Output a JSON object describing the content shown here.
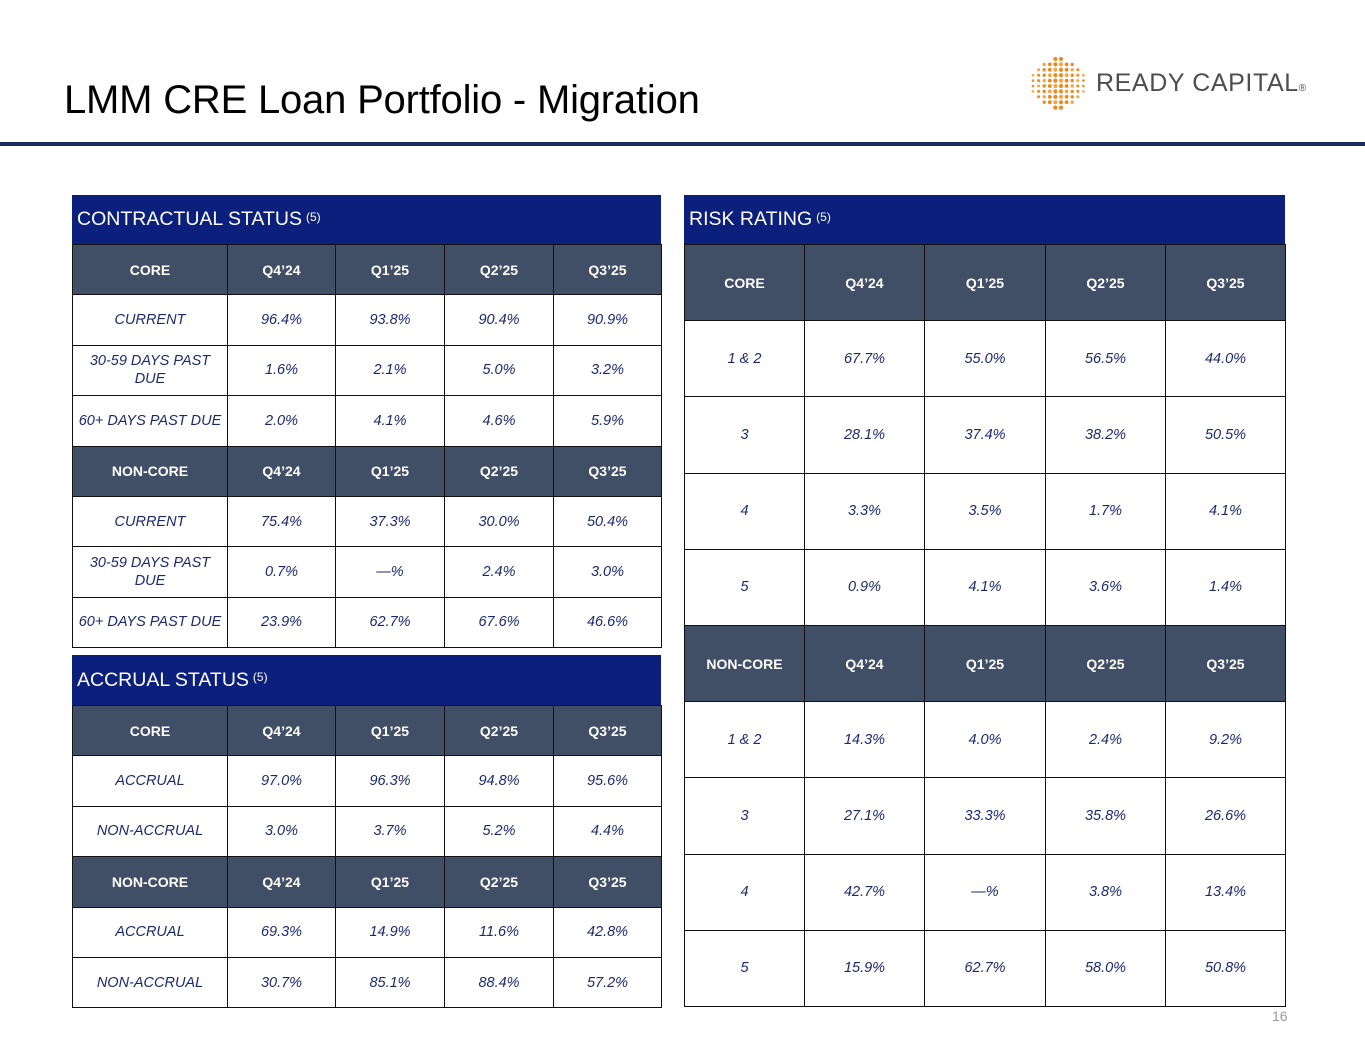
{
  "page": {
    "title": "LMM CRE Loan Portfolio - Migration",
    "page_number": "16",
    "logo": {
      "text": "READY CAPITAL",
      "reg": "®"
    }
  },
  "contractual": {
    "title": "CONTRACTUAL STATUS",
    "footnote": "(5)",
    "core_header": [
      "CORE",
      "Q4’24",
      "Q1’25",
      "Q2’25",
      "Q3’25"
    ],
    "core_rows": [
      [
        "CURRENT",
        "96.4%",
        "93.8%",
        "90.4%",
        "90.9%"
      ],
      [
        "30-59 DAYS PAST DUE",
        "1.6%",
        "2.1%",
        "5.0%",
        "3.2%"
      ],
      [
        "60+ DAYS PAST DUE",
        "2.0%",
        "4.1%",
        "4.6%",
        "5.9%"
      ]
    ],
    "noncore_header": [
      "NON-CORE",
      "Q4’24",
      "Q1’25",
      "Q2’25",
      "Q3’25"
    ],
    "noncore_rows": [
      [
        "CURRENT",
        "75.4%",
        "37.3%",
        "30.0%",
        "50.4%"
      ],
      [
        "30-59 DAYS PAST DUE",
        "0.7%",
        "—%",
        "2.4%",
        "3.0%"
      ],
      [
        "60+ DAYS PAST DUE",
        "23.9%",
        "62.7%",
        "67.6%",
        "46.6%"
      ]
    ]
  },
  "accrual": {
    "title": "ACCRUAL STATUS",
    "footnote": "(5)",
    "core_header": [
      "CORE",
      "Q4’24",
      "Q1’25",
      "Q2’25",
      "Q3’25"
    ],
    "core_rows": [
      [
        "ACCRUAL",
        "97.0%",
        "96.3%",
        "94.8%",
        "95.6%"
      ],
      [
        "NON-ACCRUAL",
        "3.0%",
        "3.7%",
        "5.2%",
        "4.4%"
      ]
    ],
    "noncore_header": [
      "NON-CORE",
      "Q4’24",
      "Q1’25",
      "Q2’25",
      "Q3’25"
    ],
    "noncore_rows": [
      [
        "ACCRUAL",
        "69.3%",
        "14.9%",
        "11.6%",
        "42.8%"
      ],
      [
        "NON-ACCRUAL",
        "30.7%",
        "85.1%",
        "88.4%",
        "57.2%"
      ]
    ]
  },
  "risk": {
    "title": "RISK RATING",
    "footnote": "(5)",
    "core_header": [
      "CORE",
      "Q4’24",
      "Q1’25",
      "Q2’25",
      "Q3’25"
    ],
    "core_rows": [
      [
        "1 & 2",
        "67.7%",
        "55.0%",
        "56.5%",
        "44.0%"
      ],
      [
        "3",
        "28.1%",
        "37.4%",
        "38.2%",
        "50.5%"
      ],
      [
        "4",
        "3.3%",
        "3.5%",
        "1.7%",
        "4.1%"
      ],
      [
        "5",
        "0.9%",
        "4.1%",
        "3.6%",
        "1.4%"
      ]
    ],
    "noncore_header": [
      "NON-CORE",
      "Q4’24",
      "Q1’25",
      "Q2’25",
      "Q3’25"
    ],
    "noncore_rows": [
      [
        "1 & 2",
        "14.3%",
        "4.0%",
        "2.4%",
        "9.2%"
      ],
      [
        "3",
        "27.1%",
        "33.3%",
        "35.8%",
        "26.6%"
      ],
      [
        "4",
        "42.7%",
        "—%",
        "3.8%",
        "13.4%"
      ],
      [
        "5",
        "15.9%",
        "62.7%",
        "58.0%",
        "50.8%"
      ]
    ]
  }
}
